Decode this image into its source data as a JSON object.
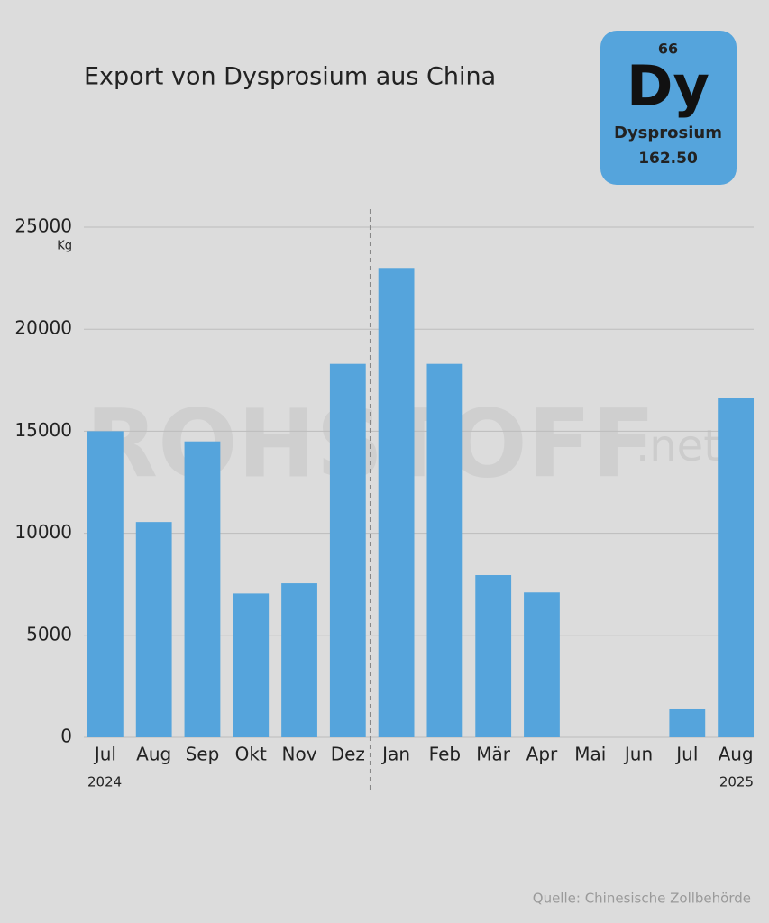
{
  "chart_data": {
    "type": "bar",
    "title": "Export von Dysprosium aus China",
    "y_unit": "Kg",
    "categories": [
      "Jul",
      "Aug",
      "Sep",
      "Okt",
      "Nov",
      "Dez",
      "Jan",
      "Feb",
      "Mär",
      "Apr",
      "Mai",
      "Jun",
      "Jul",
      "Aug"
    ],
    "values": [
      15000,
      10550,
      14500,
      7050,
      7550,
      18300,
      23000,
      18300,
      7950,
      7100,
      0,
      0,
      1370,
      16650
    ],
    "color": "#55a4dc",
    "ylim": [
      0,
      25000
    ],
    "yticks": [
      0,
      5000,
      10000,
      15000,
      20000,
      25000
    ],
    "grid": true,
    "year_labels": [
      "2024",
      "2025"
    ],
    "source": "Quelle: Chinesische Zollbehörde"
  },
  "element": {
    "number": "66",
    "symbol": "Dy",
    "name": "Dysprosium",
    "mass": "162.50"
  },
  "watermark": {
    "main": "ROHSTOFF",
    "suffix": ".net"
  }
}
